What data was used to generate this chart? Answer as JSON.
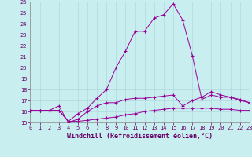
{
  "xlabel": "Windchill (Refroidissement éolien,°C)",
  "background_color": "#c8eef0",
  "line_color": "#990099",
  "grid_color": "#b0d8dc",
  "xmin": 0,
  "xmax": 23,
  "ymin": 15,
  "ymax": 26,
  "hours": [
    0,
    1,
    2,
    3,
    4,
    5,
    6,
    7,
    8,
    9,
    10,
    11,
    12,
    13,
    14,
    15,
    16,
    17,
    18,
    19,
    20,
    21,
    22,
    23
  ],
  "line1": [
    16.1,
    16.1,
    16.1,
    16.1,
    15.1,
    15.8,
    16.3,
    17.2,
    18.0,
    20.0,
    21.5,
    23.3,
    23.3,
    24.5,
    24.8,
    25.8,
    24.3,
    21.1,
    17.1,
    17.5,
    17.3,
    17.3,
    17.0,
    16.8
  ],
  "line2": [
    16.1,
    16.1,
    16.1,
    16.5,
    15.0,
    15.3,
    16.0,
    16.5,
    16.8,
    16.8,
    17.1,
    17.2,
    17.2,
    17.3,
    17.4,
    17.5,
    16.5,
    17.0,
    17.3,
    17.8,
    17.5,
    17.3,
    17.1,
    16.8
  ],
  "line3": [
    16.1,
    16.1,
    16.1,
    16.1,
    15.1,
    15.1,
    15.2,
    15.3,
    15.4,
    15.5,
    15.7,
    15.8,
    16.0,
    16.1,
    16.2,
    16.3,
    16.3,
    16.3,
    16.3,
    16.3,
    16.2,
    16.2,
    16.1,
    16.1
  ],
  "title_fontsize": 6,
  "xlabel_fontsize": 6,
  "tick_fontsize": 5
}
